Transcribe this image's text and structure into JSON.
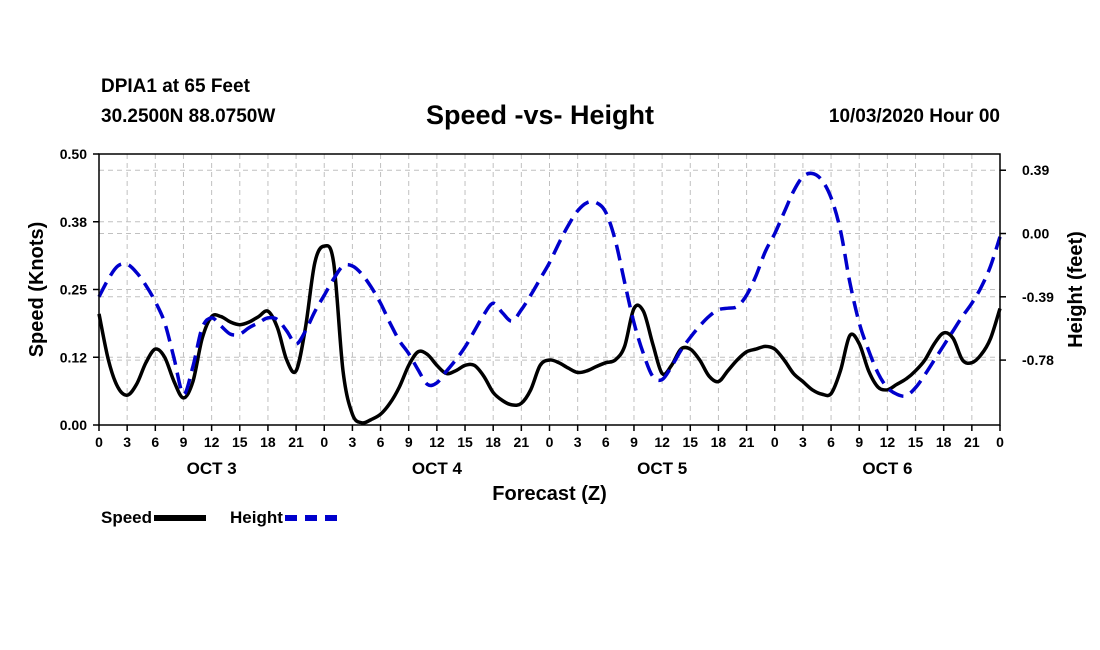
{
  "header": {
    "station": "DPIA1 at 65 Feet",
    "coords": "30.2500N 88.0750W",
    "title": "Speed -vs- Height",
    "datetime": "10/03/2020 Hour 00"
  },
  "legend": {
    "speed_label": "Speed",
    "height_label": "Height"
  },
  "colors": {
    "speed": "#000000",
    "height": "#0000cc",
    "grid": "#c0c0c0"
  },
  "chart_data": {
    "type": "line",
    "title": "Speed -vs- Height",
    "xlabel": "Forecast (Z)",
    "ylabel": "Speed (Knots)",
    "ylabel_right": "Height (feet)",
    "x_hours": [
      0,
      96
    ],
    "ylim": [
      0,
      0.5
    ],
    "ylim_right": [
      -1.18,
      0.49
    ],
    "y_ticks": [
      "0.00",
      "0.12",
      "0.25",
      "0.38",
      "0.50"
    ],
    "y_tick_values": [
      0,
      0.125,
      0.25,
      0.375,
      0.5
    ],
    "y2_ticks": [
      "-0.78",
      "-0.39",
      "0.00",
      "0.39"
    ],
    "y2_tick_values": [
      -0.78,
      -0.39,
      0.0,
      0.39
    ],
    "x_ticks": [
      {
        "h": 0,
        "label": "0"
      },
      {
        "h": 3,
        "label": "3"
      },
      {
        "h": 6,
        "label": "6"
      },
      {
        "h": 9,
        "label": "9"
      },
      {
        "h": 12,
        "label": "12"
      },
      {
        "h": 15,
        "label": "15"
      },
      {
        "h": 18,
        "label": "18"
      },
      {
        "h": 21,
        "label": "21"
      },
      {
        "h": 24,
        "label": "0"
      },
      {
        "h": 27,
        "label": "3"
      },
      {
        "h": 30,
        "label": "6"
      },
      {
        "h": 33,
        "label": "9"
      },
      {
        "h": 36,
        "label": "12"
      },
      {
        "h": 39,
        "label": "15"
      },
      {
        "h": 42,
        "label": "18"
      },
      {
        "h": 45,
        "label": "21"
      },
      {
        "h": 48,
        "label": "0"
      },
      {
        "h": 51,
        "label": "3"
      },
      {
        "h": 54,
        "label": "6"
      },
      {
        "h": 57,
        "label": "9"
      },
      {
        "h": 60,
        "label": "12"
      },
      {
        "h": 63,
        "label": "15"
      },
      {
        "h": 66,
        "label": "18"
      },
      {
        "h": 69,
        "label": "21"
      },
      {
        "h": 72,
        "label": "0"
      },
      {
        "h": 75,
        "label": "3"
      },
      {
        "h": 78,
        "label": "6"
      },
      {
        "h": 81,
        "label": "9"
      },
      {
        "h": 84,
        "label": "12"
      },
      {
        "h": 87,
        "label": "15"
      },
      {
        "h": 90,
        "label": "18"
      },
      {
        "h": 93,
        "label": "21"
      },
      {
        "h": 96,
        "label": "0"
      }
    ],
    "day_labels": [
      {
        "h": 12,
        "label": "OCT 3"
      },
      {
        "h": 36,
        "label": "OCT 4"
      },
      {
        "h": 60,
        "label": "OCT 5"
      },
      {
        "h": 84,
        "label": "OCT 6"
      }
    ],
    "series": [
      {
        "name": "Speed",
        "axis": "left",
        "style": "solid",
        "points": [
          [
            0,
            0.205
          ],
          [
            1,
            0.12
          ],
          [
            2,
            0.07
          ],
          [
            3,
            0.055
          ],
          [
            4,
            0.075
          ],
          [
            5,
            0.115
          ],
          [
            6,
            0.14
          ],
          [
            7,
            0.125
          ],
          [
            8,
            0.08
          ],
          [
            9,
            0.05
          ],
          [
            10,
            0.08
          ],
          [
            11,
            0.16
          ],
          [
            12,
            0.2
          ],
          [
            13,
            0.2
          ],
          [
            14,
            0.19
          ],
          [
            15,
            0.185
          ],
          [
            16,
            0.19
          ],
          [
            17,
            0.2
          ],
          [
            18,
            0.21
          ],
          [
            19,
            0.18
          ],
          [
            20,
            0.12
          ],
          [
            21,
            0.1
          ],
          [
            22,
            0.18
          ],
          [
            23,
            0.3
          ],
          [
            24,
            0.33
          ],
          [
            25,
            0.3
          ],
          [
            26,
            0.1
          ],
          [
            27,
            0.02
          ],
          [
            28,
            0.004
          ],
          [
            29,
            0.01
          ],
          [
            30,
            0.02
          ],
          [
            31,
            0.04
          ],
          [
            32,
            0.07
          ],
          [
            33,
            0.11
          ],
          [
            34,
            0.135
          ],
          [
            35,
            0.13
          ],
          [
            36,
            0.11
          ],
          [
            37,
            0.095
          ],
          [
            38,
            0.1
          ],
          [
            39,
            0.11
          ],
          [
            40,
            0.11
          ],
          [
            41,
            0.09
          ],
          [
            42,
            0.06
          ],
          [
            43,
            0.045
          ],
          [
            44,
            0.037
          ],
          [
            45,
            0.04
          ],
          [
            46,
            0.065
          ],
          [
            47,
            0.11
          ],
          [
            48,
            0.12
          ],
          [
            49,
            0.115
          ],
          [
            50,
            0.105
          ],
          [
            51,
            0.097
          ],
          [
            52,
            0.1
          ],
          [
            53,
            0.108
          ],
          [
            54,
            0.115
          ],
          [
            55,
            0.12
          ],
          [
            56,
            0.145
          ],
          [
            57,
            0.215
          ],
          [
            58,
            0.21
          ],
          [
            59,
            0.15
          ],
          [
            60,
            0.095
          ],
          [
            61,
            0.11
          ],
          [
            62,
            0.14
          ],
          [
            63,
            0.14
          ],
          [
            64,
            0.12
          ],
          [
            65,
            0.09
          ],
          [
            66,
            0.08
          ],
          [
            67,
            0.1
          ],
          [
            68,
            0.12
          ],
          [
            69,
            0.135
          ],
          [
            70,
            0.14
          ],
          [
            71,
            0.145
          ],
          [
            72,
            0.14
          ],
          [
            73,
            0.12
          ],
          [
            74,
            0.095
          ],
          [
            75,
            0.08
          ],
          [
            76,
            0.065
          ],
          [
            77,
            0.057
          ],
          [
            78,
            0.058
          ],
          [
            79,
            0.1
          ],
          [
            80,
            0.165
          ],
          [
            81,
            0.15
          ],
          [
            82,
            0.1
          ],
          [
            83,
            0.07
          ],
          [
            84,
            0.065
          ],
          [
            85,
            0.075
          ],
          [
            86,
            0.085
          ],
          [
            87,
            0.1
          ],
          [
            88,
            0.12
          ],
          [
            89,
            0.15
          ],
          [
            90,
            0.17
          ],
          [
            91,
            0.16
          ],
          [
            92,
            0.12
          ],
          [
            93,
            0.115
          ],
          [
            94,
            0.13
          ],
          [
            95,
            0.16
          ],
          [
            96,
            0.215
          ]
        ]
      },
      {
        "name": "Height",
        "axis": "right",
        "style": "dashed",
        "points": [
          [
            0,
            -0.39
          ],
          [
            1,
            -0.28
          ],
          [
            2,
            -0.2
          ],
          [
            3,
            -0.19
          ],
          [
            4,
            -0.24
          ],
          [
            5,
            -0.32
          ],
          [
            6,
            -0.42
          ],
          [
            7,
            -0.55
          ],
          [
            8,
            -0.77
          ],
          [
            9,
            -0.99
          ],
          [
            10,
            -0.82
          ],
          [
            11,
            -0.58
          ],
          [
            12,
            -0.52
          ],
          [
            13,
            -0.57
          ],
          [
            14,
            -0.62
          ],
          [
            15,
            -0.62
          ],
          [
            16,
            -0.58
          ],
          [
            17,
            -0.55
          ],
          [
            18,
            -0.52
          ],
          [
            19,
            -0.53
          ],
          [
            20,
            -0.6
          ],
          [
            21,
            -0.68
          ],
          [
            22,
            -0.6
          ],
          [
            23,
            -0.48
          ],
          [
            24,
            -0.38
          ],
          [
            25,
            -0.28
          ],
          [
            26,
            -0.2
          ],
          [
            27,
            -0.2
          ],
          [
            28,
            -0.25
          ],
          [
            29,
            -0.33
          ],
          [
            30,
            -0.43
          ],
          [
            31,
            -0.55
          ],
          [
            32,
            -0.66
          ],
          [
            33,
            -0.74
          ],
          [
            34,
            -0.84
          ],
          [
            35,
            -0.93
          ],
          [
            36,
            -0.92
          ],
          [
            37,
            -0.85
          ],
          [
            38,
            -0.78
          ],
          [
            39,
            -0.7
          ],
          [
            40,
            -0.6
          ],
          [
            41,
            -0.5
          ],
          [
            42,
            -0.43
          ],
          [
            43,
            -0.49
          ],
          [
            44,
            -0.54
          ],
          [
            45,
            -0.47
          ],
          [
            46,
            -0.38
          ],
          [
            47,
            -0.28
          ],
          [
            48,
            -0.18
          ],
          [
            49,
            -0.06
          ],
          [
            50,
            0.05
          ],
          [
            51,
            0.14
          ],
          [
            52,
            0.19
          ],
          [
            53,
            0.19
          ],
          [
            54,
            0.13
          ],
          [
            55,
            -0.04
          ],
          [
            56,
            -0.3
          ],
          [
            57,
            -0.55
          ],
          [
            58,
            -0.74
          ],
          [
            59,
            -0.88
          ],
          [
            60,
            -0.9
          ],
          [
            61,
            -0.82
          ],
          [
            62,
            -0.72
          ],
          [
            63,
            -0.64
          ],
          [
            64,
            -0.57
          ],
          [
            65,
            -0.51
          ],
          [
            66,
            -0.47
          ],
          [
            67,
            -0.46
          ],
          [
            68,
            -0.45
          ],
          [
            69,
            -0.38
          ],
          [
            70,
            -0.26
          ],
          [
            71,
            -0.11
          ],
          [
            72,
            0.0
          ],
          [
            73,
            0.13
          ],
          [
            74,
            0.26
          ],
          [
            75,
            0.35
          ],
          [
            76,
            0.37
          ],
          [
            77,
            0.33
          ],
          [
            78,
            0.22
          ],
          [
            79,
            0.02
          ],
          [
            80,
            -0.3
          ],
          [
            81,
            -0.55
          ],
          [
            82,
            -0.72
          ],
          [
            83,
            -0.86
          ],
          [
            84,
            -0.95
          ],
          [
            85,
            -0.99
          ],
          [
            86,
            -1.0
          ],
          [
            87,
            -0.95
          ],
          [
            88,
            -0.87
          ],
          [
            89,
            -0.78
          ],
          [
            90,
            -0.69
          ],
          [
            91,
            -0.6
          ],
          [
            92,
            -0.51
          ],
          [
            93,
            -0.43
          ],
          [
            94,
            -0.33
          ],
          [
            95,
            -0.2
          ],
          [
            96,
            -0.02
          ]
        ]
      }
    ]
  }
}
